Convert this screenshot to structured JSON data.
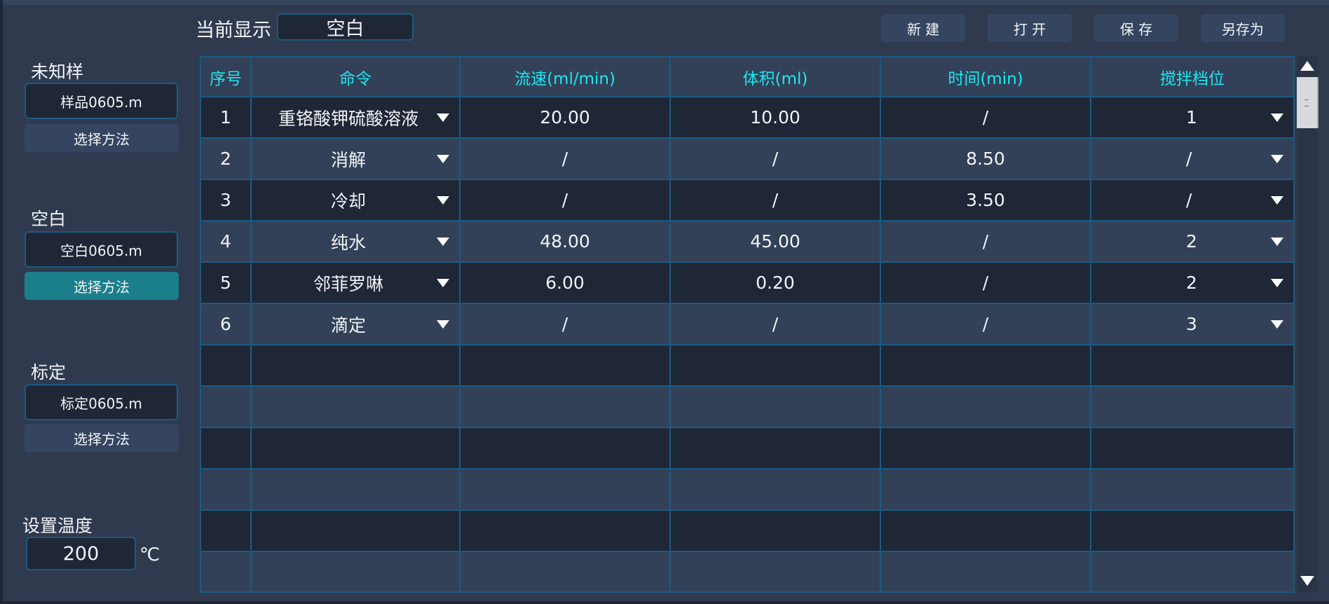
{
  "header": {
    "current_label": "当前显示",
    "current_value": "空白",
    "buttons": {
      "new": "新 建",
      "open": "打 开",
      "save": "保 存",
      "save_as": "另存为"
    }
  },
  "left": {
    "unknown": {
      "label": "未知样",
      "file": "样品0605.m",
      "button": "选择方法"
    },
    "blank": {
      "label": "空白",
      "file": "空白0605.m",
      "button": "选择方法"
    },
    "calib": {
      "label": "标定",
      "file": "标定0605.m",
      "button": "选择方法"
    },
    "temperature": {
      "label": "设置温度",
      "value": "200",
      "unit": "℃"
    }
  },
  "table": {
    "columns": [
      "序号",
      "命令",
      "流速(ml/min)",
      "体积(ml)",
      "时间(min)",
      "搅拌档位"
    ],
    "rows": [
      [
        "1",
        "重铬酸钾硫酸溶液",
        "20.00",
        "10.00",
        "/",
        "1"
      ],
      [
        "2",
        "消解",
        "/",
        "/",
        "8.50",
        "/"
      ],
      [
        "3",
        "冷却",
        "/",
        "/",
        "3.50",
        "/"
      ],
      [
        "4",
        "纯水",
        "48.00",
        "45.00",
        "/",
        "2"
      ],
      [
        "5",
        "邻菲罗啉",
        "6.00",
        "0.20",
        "/",
        "2"
      ],
      [
        "6",
        "滴定",
        "/",
        "/",
        "/",
        "3"
      ]
    ],
    "empty_rows": 6
  },
  "colors": {
    "accent": "#1ee6ee",
    "border": "#1c5a80",
    "active_button": "#1a7f8a",
    "background": "#2f3a4f"
  }
}
